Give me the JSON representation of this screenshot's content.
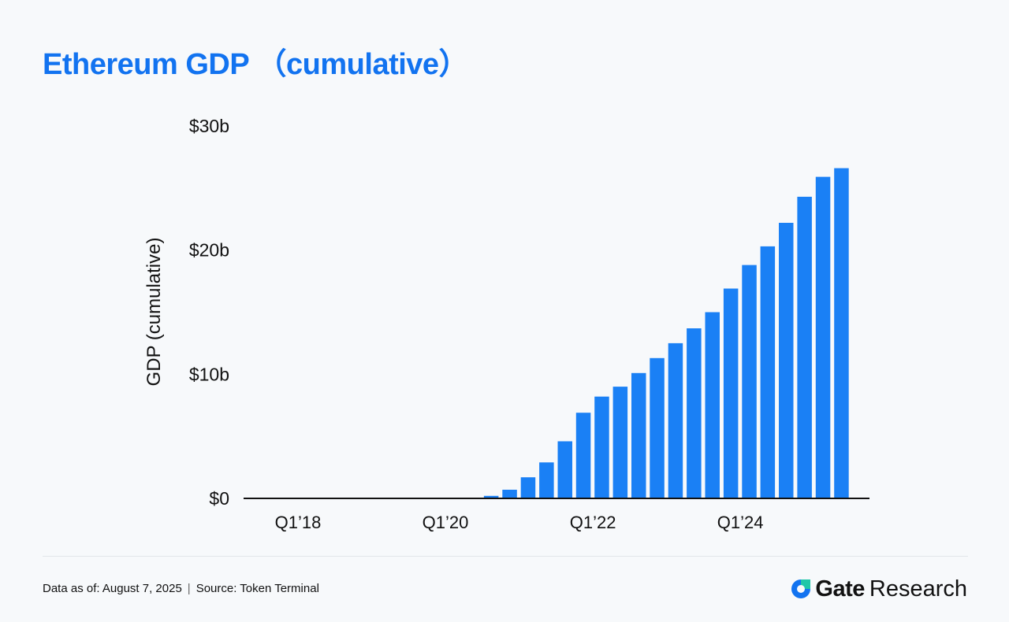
{
  "header": {
    "title": "Ethereum GDP （cumulative）"
  },
  "chart_data": {
    "type": "bar",
    "ylabel": "GDP (cumulative)",
    "xlabel": "",
    "ylim": [
      0,
      30
    ],
    "ytick_values": [
      0,
      10,
      20,
      30
    ],
    "ytick_labels": [
      "$0",
      "$10b",
      "$20b",
      "$30b"
    ],
    "xtick_labels": [
      "Q1’18",
      "Q1’20",
      "Q1’22",
      "Q1’24"
    ],
    "xtick_categories": [
      "Q1'18",
      "Q1'20",
      "Q1'22",
      "Q1'24"
    ],
    "categories": [
      "Q1'18",
      "Q2'18",
      "Q3'18",
      "Q4'18",
      "Q1'19",
      "Q2'19",
      "Q3'19",
      "Q4'19",
      "Q1'20",
      "Q2'20",
      "Q3'20",
      "Q4'20",
      "Q1'21",
      "Q2'21",
      "Q3'21",
      "Q4'21",
      "Q1'22",
      "Q2'22",
      "Q3'22",
      "Q4'22",
      "Q1'23",
      "Q2'23",
      "Q3'23",
      "Q4'23",
      "Q1'24",
      "Q2'24",
      "Q3'24",
      "Q4'24",
      "Q1'25",
      "Q2'25",
      "Q3'25"
    ],
    "values": [
      0,
      0,
      0,
      0,
      0,
      0,
      0,
      0,
      0,
      0,
      0,
      0.2,
      0.7,
      1.7,
      2.9,
      4.6,
      6.9,
      8.2,
      9.0,
      10.1,
      11.3,
      12.5,
      13.7,
      15.0,
      16.9,
      18.8,
      20.3,
      22.2,
      24.3,
      25.9,
      26.6
    ],
    "bar_color": "#1a80f5",
    "grid": false,
    "legend": "none"
  },
  "footer": {
    "data_as_of": "Data as of: August 7, 2025",
    "separator": "|",
    "source": "Source: Token Terminal",
    "brand_name": "Gate",
    "brand_suffix": "Research"
  },
  "colors": {
    "accent": "#1273f0",
    "bar": "#1a80f5"
  }
}
